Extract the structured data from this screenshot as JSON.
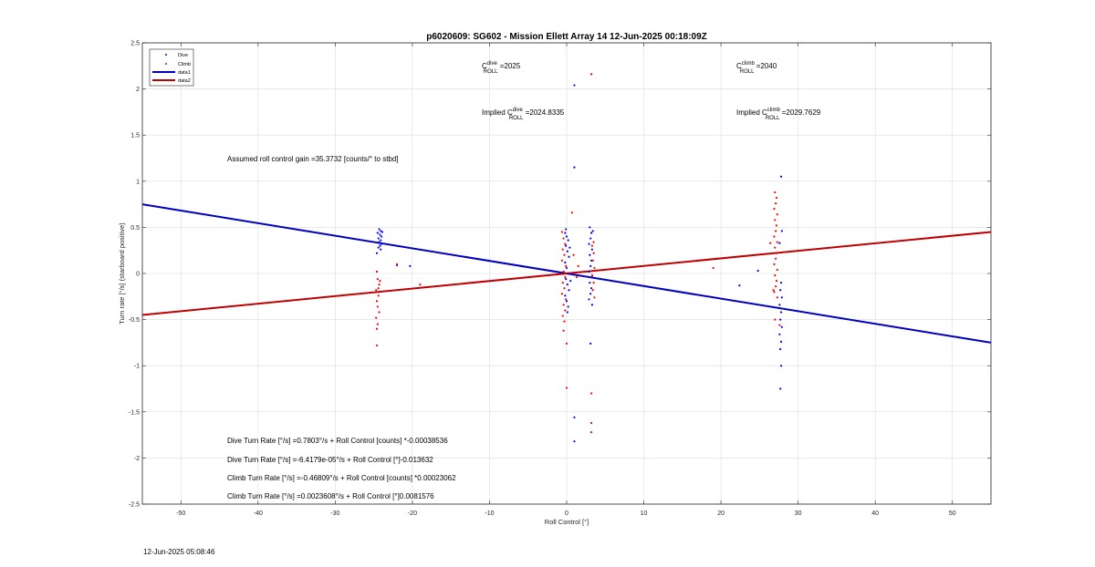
{
  "figure": {
    "footer_timestamp": "12-Jun-2025 05:08:46"
  },
  "chart_data": {
    "type": "scatter",
    "title": "p6020609: SG602 - Mission Ellett Array 14 12-Jun-2025 00:18:09Z",
    "xlabel": "Roll Control [°]",
    "ylabel": "Turn rate [°/s] (starboard positive)",
    "xlim": [
      -55,
      55
    ],
    "ylim": [
      -2.5,
      2.5
    ],
    "xticks": [
      -50,
      -40,
      -30,
      -20,
      -10,
      0,
      10,
      20,
      30,
      40,
      50
    ],
    "yticks": [
      -2.5,
      -2,
      -1.5,
      -1,
      -0.5,
      0,
      0.5,
      1,
      1.5,
      2,
      2.5
    ],
    "grid": true,
    "legend_position": "top-left",
    "colors": {
      "dive": "#0000ff",
      "climb": "#ff0000",
      "data1": "#0000c0",
      "data2": "#c00000"
    },
    "legend": [
      {
        "label": "Dive",
        "kind": "marker",
        "color": "#0000ff"
      },
      {
        "label": "Climb",
        "kind": "marker",
        "color": "#ff0000"
      },
      {
        "label": "data1",
        "kind": "line",
        "color": "#0000c0"
      },
      {
        "label": "data2",
        "kind": "line",
        "color": "#c00000"
      }
    ],
    "series": [
      {
        "name": "Dive",
        "kind": "scatter",
        "color": "#0000ff",
        "points": [
          [
            -24.3,
            0.48
          ],
          [
            -24.1,
            0.46
          ],
          [
            -24.5,
            0.44
          ],
          [
            -24.2,
            0.42
          ],
          [
            -24.0,
            0.4
          ],
          [
            -24.4,
            0.38
          ],
          [
            -24.1,
            0.36
          ],
          [
            -24.3,
            0.34
          ],
          [
            -24.0,
            0.32
          ],
          [
            -24.2,
            0.3
          ],
          [
            -24.4,
            0.28
          ],
          [
            -24.1,
            0.26
          ],
          [
            -23.9,
            0.45
          ],
          [
            -24.6,
            0.22
          ],
          [
            -20.3,
            0.08
          ],
          [
            -22.0,
            0.09
          ],
          [
            -0.2,
            0.44
          ],
          [
            0.0,
            0.4
          ],
          [
            0.2,
            0.36
          ],
          [
            -0.1,
            0.3
          ],
          [
            0.1,
            0.24
          ],
          [
            0.3,
            0.18
          ],
          [
            -0.2,
            0.12
          ],
          [
            0.0,
            0.06
          ],
          [
            0.2,
            0.0
          ],
          [
            -0.1,
            -0.06
          ],
          [
            0.1,
            -0.12
          ],
          [
            0.3,
            -0.18
          ],
          [
            -0.2,
            -0.24
          ],
          [
            0.0,
            -0.3
          ],
          [
            0.2,
            -0.36
          ],
          [
            0.1,
            -0.42
          ],
          [
            -0.1,
            0.48
          ],
          [
            0.4,
            0.28
          ],
          [
            0.5,
            -0.08
          ],
          [
            -0.4,
            0.02
          ],
          [
            1.0,
            2.04
          ],
          [
            1.0,
            1.15
          ],
          [
            1.0,
            -1.56
          ],
          [
            1.0,
            -1.82
          ],
          [
            3.0,
            0.5
          ],
          [
            3.2,
            0.44
          ],
          [
            3.1,
            0.38
          ],
          [
            2.9,
            0.32
          ],
          [
            3.3,
            0.26
          ],
          [
            3.0,
            0.2
          ],
          [
            3.2,
            0.14
          ],
          [
            3.1,
            0.08
          ],
          [
            2.9,
            0.02
          ],
          [
            3.3,
            -0.04
          ],
          [
            3.0,
            -0.1
          ],
          [
            3.2,
            -0.16
          ],
          [
            3.1,
            -0.22
          ],
          [
            2.9,
            -0.28
          ],
          [
            3.3,
            -0.34
          ],
          [
            3.1,
            -0.76
          ],
          [
            3.4,
            0.46
          ],
          [
            22.4,
            -0.13
          ],
          [
            24.8,
            0.03
          ],
          [
            27.8,
            1.05
          ],
          [
            27.9,
            0.46
          ],
          [
            27.6,
            0.33
          ],
          [
            27.8,
            -0.1
          ],
          [
            27.7,
            -0.18
          ],
          [
            27.9,
            -0.26
          ],
          [
            27.6,
            -0.34
          ],
          [
            27.8,
            -0.42
          ],
          [
            27.7,
            -0.5
          ],
          [
            27.9,
            -0.58
          ],
          [
            27.6,
            -0.66
          ],
          [
            27.8,
            -0.74
          ],
          [
            27.7,
            -0.82
          ],
          [
            27.8,
            -1.0
          ],
          [
            27.7,
            -1.25
          ]
        ]
      },
      {
        "name": "Climb",
        "kind": "scatter",
        "color": "#ff0000",
        "points": [
          [
            -24.6,
            0.02
          ],
          [
            -24.5,
            -0.06
          ],
          [
            -24.3,
            -0.12
          ],
          [
            -24.7,
            -0.18
          ],
          [
            -24.4,
            -0.24
          ],
          [
            -24.6,
            -0.3
          ],
          [
            -24.5,
            -0.36
          ],
          [
            -24.3,
            -0.42
          ],
          [
            -24.7,
            -0.48
          ],
          [
            -24.5,
            -0.55
          ],
          [
            -24.6,
            -0.6
          ],
          [
            -24.6,
            -0.78
          ],
          [
            -24.4,
            -0.16
          ],
          [
            -24.2,
            -0.08
          ],
          [
            -22.0,
            0.1
          ],
          [
            -19.0,
            -0.12
          ],
          [
            -0.6,
            0.45
          ],
          [
            -0.4,
            0.38
          ],
          [
            -0.2,
            0.32
          ],
          [
            -0.5,
            0.26
          ],
          [
            -0.3,
            0.2
          ],
          [
            -0.6,
            0.14
          ],
          [
            -0.1,
            0.08
          ],
          [
            -0.4,
            0.02
          ],
          [
            -0.2,
            -0.04
          ],
          [
            -0.5,
            -0.1
          ],
          [
            -0.3,
            -0.16
          ],
          [
            -0.6,
            -0.22
          ],
          [
            -0.1,
            -0.28
          ],
          [
            -0.4,
            -0.34
          ],
          [
            -0.2,
            -0.4
          ],
          [
            -0.5,
            -0.46
          ],
          [
            -0.3,
            -0.52
          ],
          [
            -0.4,
            -0.62
          ],
          [
            0.0,
            -0.76
          ],
          [
            0.0,
            -1.24
          ],
          [
            0.7,
            0.66
          ],
          [
            1.3,
            -0.04
          ],
          [
            1.5,
            0.08
          ],
          [
            0.9,
            0.2
          ],
          [
            3.2,
            2.16
          ],
          [
            3.2,
            -1.3
          ],
          [
            3.2,
            -1.62
          ],
          [
            3.2,
            -1.72
          ],
          [
            3.3,
            0.3
          ],
          [
            3.5,
            0.22
          ],
          [
            3.4,
            0.14
          ],
          [
            3.6,
            0.06
          ],
          [
            3.3,
            -0.02
          ],
          [
            3.5,
            -0.1
          ],
          [
            3.4,
            -0.18
          ],
          [
            3.6,
            -0.26
          ],
          [
            3.5,
            0.34
          ],
          [
            19.0,
            0.06
          ],
          [
            27.0,
            0.88
          ],
          [
            27.2,
            0.82
          ],
          [
            27.1,
            0.76
          ],
          [
            26.9,
            0.7
          ],
          [
            27.3,
            0.64
          ],
          [
            27.0,
            0.58
          ],
          [
            27.2,
            0.52
          ],
          [
            27.1,
            0.46
          ],
          [
            26.9,
            0.4
          ],
          [
            27.3,
            0.34
          ],
          [
            27.0,
            0.28
          ],
          [
            27.2,
            0.22
          ],
          [
            27.1,
            0.16
          ],
          [
            26.9,
            0.1
          ],
          [
            27.3,
            0.04
          ],
          [
            27.0,
            -0.02
          ],
          [
            27.2,
            -0.08
          ],
          [
            27.1,
            -0.14
          ],
          [
            26.9,
            -0.2
          ],
          [
            27.3,
            -0.26
          ],
          [
            27.0,
            -0.5
          ],
          [
            27.6,
            -0.56
          ],
          [
            26.4,
            0.33
          ],
          [
            26.8,
            -0.18
          ]
        ]
      },
      {
        "name": "data1",
        "kind": "line",
        "color": "#0000c0",
        "x": [
          -55,
          55
        ],
        "y": [
          0.75,
          -0.75
        ]
      },
      {
        "name": "data2",
        "kind": "line",
        "color": "#c00000",
        "x": [
          -55,
          55
        ],
        "y": [
          -0.45,
          0.45
        ]
      }
    ],
    "annotations": {
      "c_roll_dive_prefix": "C",
      "c_roll_dive_sup": "dive",
      "c_roll_dive_sub": "ROLL",
      "c_roll_dive_value": " =2025",
      "c_roll_climb_prefix": "C",
      "c_roll_climb_sup": "climb",
      "c_roll_climb_sub": "ROLL",
      "c_roll_climb_value": " =2040",
      "implied_dive_prefix": "Implied C",
      "implied_dive_sup": "dive",
      "implied_dive_sub": "ROLL",
      "implied_dive_value": " =2024.8335",
      "implied_climb_prefix": "Implied C",
      "implied_climb_sup": "climb",
      "implied_climb_sub": "ROLL",
      "implied_climb_value": " =2029.7629",
      "gain": "Assumed roll control gain =35.3732 [counts/° to stbd]",
      "fit_1": "Dive Turn Rate [°/s] =0.7803°/s + Roll Control [counts] *-0.00038536",
      "fit_2": "Dive Turn Rate [°/s] =-6.4179e-05°/s + Roll Control [°]-0.013632",
      "fit_3": "Climb Turn Rate [°/s] =-0.46809°/s + Roll Control [counts] *0.00023062",
      "fit_4": "Climb Turn Rate [°/s] =0.0023608°/s + Roll Control [°]0.0081576"
    }
  }
}
